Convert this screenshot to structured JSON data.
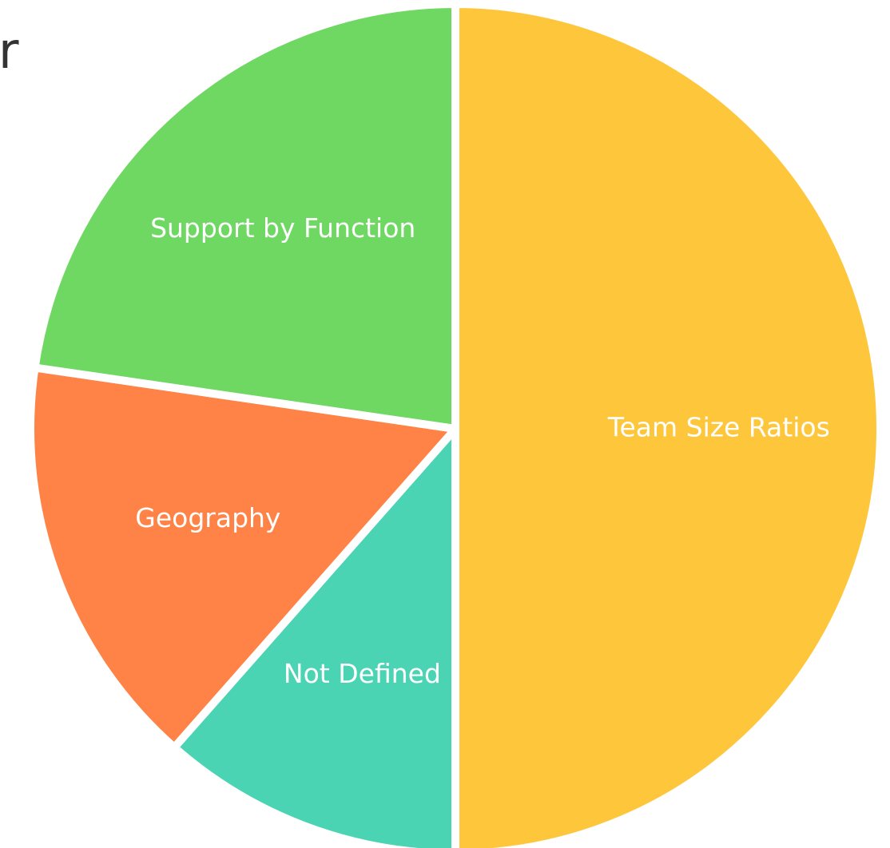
{
  "chart_data": {
    "type": "pie",
    "title": "r",
    "categories": [
      "Team Size Ratios",
      "Not Defined",
      "Geography",
      "Support by Function"
    ],
    "values": [
      50,
      11.5,
      15.8,
      22.7
    ],
    "colors": [
      "#fec63a",
      "#4bd4b4",
      "#ff8247",
      "#6fd863"
    ]
  }
}
